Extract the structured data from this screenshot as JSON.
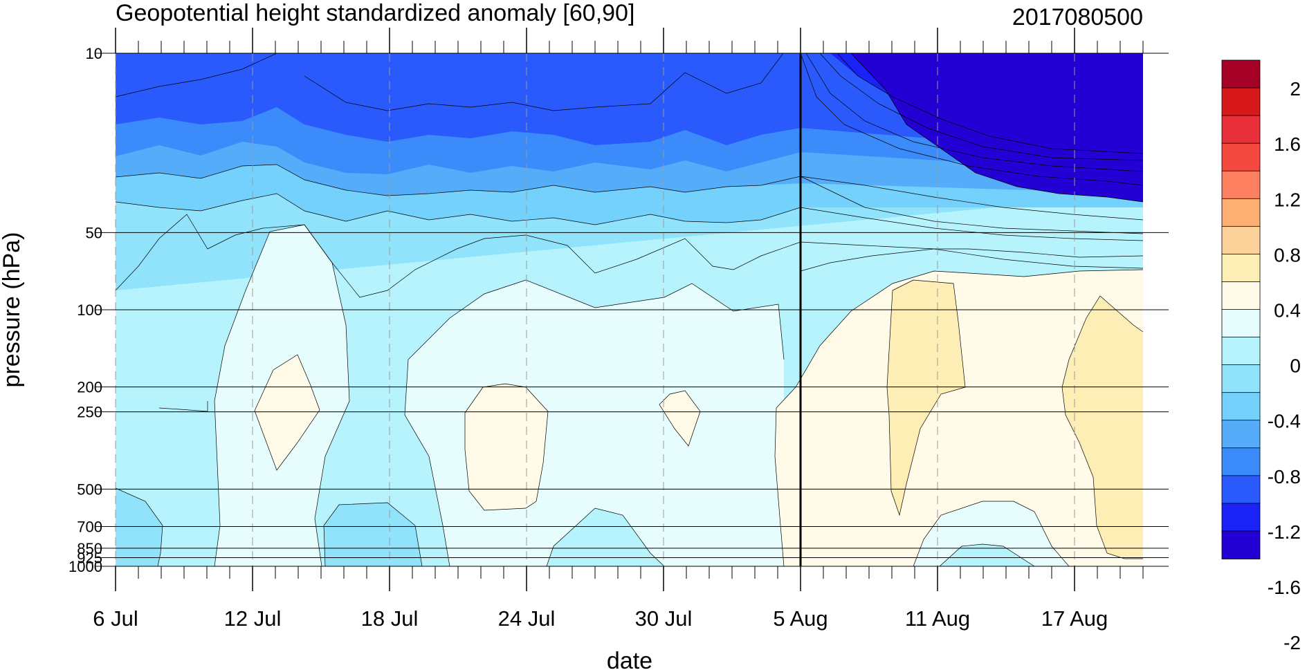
{
  "chart_data": {
    "type": "heatmap",
    "title": "Geopotential height standardized anomaly [60,90]",
    "subtitle": "2017080500",
    "xlabel": "date",
    "ylabel": "pressure (hPa)",
    "x_tick_labels": [
      "6 Jul",
      "12 Jul",
      "18 Jul",
      "24 Jul",
      "30 Jul",
      "5 Aug",
      "11 Aug",
      "17 Aug"
    ],
    "x_tick_dates": [
      "2017-07-06",
      "2017-07-12",
      "2017-07-18",
      "2017-07-24",
      "2017-07-30",
      "2017-08-05",
      "2017-08-11",
      "2017-08-17"
    ],
    "x_range": [
      "2017-07-06",
      "2017-08-20"
    ],
    "analysis_date": "2017-08-05",
    "y_scale": "log",
    "y_range": [
      1000,
      10
    ],
    "y_tick_labels": [
      "10",
      "50",
      "100",
      "200",
      "250",
      "500",
      "700",
      "850",
      "925",
      "1000"
    ],
    "y_tick_values": [
      10,
      50,
      100,
      200,
      250,
      500,
      700,
      850,
      925,
      1000
    ],
    "colorbar": {
      "labels": [
        "2",
        "1.6",
        "1.2",
        "0.8",
        "0.4",
        "0",
        "-0.4",
        "-0.8",
        "-1.2",
        "-1.6",
        "-2"
      ],
      "colors": [
        "#a50026",
        "#d7191c",
        "#e8303a",
        "#f4493e",
        "#fc8060",
        "#fdae73",
        "#fdd39b",
        "#fdeeb6",
        "#fffbe8",
        "#e6fcfd",
        "#b6f3fc",
        "#90e3fb",
        "#73d1fb",
        "#55adfa",
        "#3b8cfa",
        "#2a5afb",
        "#1b22f5",
        "#2300d4"
      ]
    },
    "contour_levels": [
      -2.2,
      -2.0,
      -1.8,
      -1.6,
      -1.4,
      -1.2,
      -1.0,
      -0.8,
      -0.6,
      -0.4,
      -0.2,
      0.0,
      0.2,
      0.4
    ],
    "series": [
      {
        "date": "2017-07-06",
        "values": [
          -1.7,
          -1.3,
          -0.95,
          -0.5,
          -0.4,
          -0.35,
          -0.2,
          -0.3
        ]
      },
      {
        "date": "2017-07-08",
        "values": [
          -1.65,
          -1.2,
          -0.9,
          -0.55,
          -0.35,
          -0.3,
          -0.25,
          -0.3
        ]
      },
      {
        "date": "2017-07-10",
        "values": [
          -1.7,
          -1.25,
          -0.95,
          -0.55,
          -0.3,
          -0.15,
          -0.1,
          -0.05
        ]
      },
      {
        "date": "2017-07-12",
        "values": [
          -1.7,
          -1.15,
          -0.7,
          -0.35,
          -0.1,
          0.0,
          -0.15,
          -0.25
        ]
      },
      {
        "date": "2017-07-13",
        "values": [
          -1.75,
          -1.1,
          -0.55,
          -0.25,
          0.05,
          0.12,
          -0.1,
          -0.3
        ]
      },
      {
        "date": "2017-07-14",
        "values": [
          -1.8,
          -1.05,
          -0.5,
          -0.2,
          0.1,
          0.2,
          -0.05,
          -0.3
        ]
      },
      {
        "date": "2017-07-15",
        "values": [
          -1.85,
          -1.15,
          -0.6,
          -0.25,
          0.05,
          0.1,
          -0.2,
          -0.35
        ]
      },
      {
        "date": "2017-07-18",
        "values": [
          -1.85,
          -1.35,
          -0.8,
          -0.5,
          -0.3,
          -0.25,
          -0.35,
          -0.4
        ]
      },
      {
        "date": "2017-07-20",
        "values": [
          -1.8,
          -1.25,
          -0.75,
          -0.45,
          -0.2,
          -0.15,
          -0.3,
          -0.35
        ]
      },
      {
        "date": "2017-07-22",
        "values": [
          -1.8,
          -1.25,
          -0.75,
          -0.35,
          -0.05,
          0.05,
          -0.1,
          -0.2
        ]
      },
      {
        "date": "2017-07-23",
        "values": [
          -1.8,
          -1.25,
          -0.75,
          -0.3,
          0.0,
          0.12,
          -0.05,
          -0.15
        ]
      },
      {
        "date": "2017-07-24",
        "values": [
          -1.8,
          -1.25,
          -0.75,
          -0.3,
          0.02,
          0.15,
          0.05,
          -0.1
        ]
      },
      {
        "date": "2017-07-27",
        "values": [
          -1.85,
          -1.3,
          -0.8,
          -0.4,
          -0.15,
          -0.1,
          -0.2,
          -0.3
        ]
      },
      {
        "date": "2017-07-30",
        "values": [
          -1.8,
          -1.25,
          -0.75,
          -0.35,
          -0.1,
          -0.05,
          -0.1,
          -0.15
        ]
      },
      {
        "date": "2017-07-31",
        "values": [
          -1.75,
          -1.25,
          -0.75,
          -0.3,
          -0.05,
          0.05,
          -0.05,
          -0.2
        ]
      },
      {
        "date": "2017-08-02",
        "values": [
          -1.8,
          -1.25,
          -0.75,
          -0.35,
          -0.15,
          -0.05,
          -0.05,
          -0.1
        ]
      },
      {
        "date": "2017-08-05",
        "values": [
          -1.6,
          -1.1,
          -0.6,
          -0.2,
          0.05,
          0.15,
          0.1,
          0.05
        ]
      },
      {
        "date": "2017-08-07",
        "values": [
          -2.0,
          -1.4,
          -0.7,
          -0.15,
          0.15,
          0.2,
          0.15,
          0.1
        ]
      },
      {
        "date": "2017-08-10",
        "values": [
          -2.3,
          -1.7,
          -0.9,
          -0.25,
          0.25,
          0.3,
          0.25,
          0.1
        ]
      },
      {
        "date": "2017-08-11",
        "values": [
          -2.3,
          -1.8,
          -1.0,
          -0.3,
          0.3,
          0.3,
          0.2,
          -0.1
        ]
      },
      {
        "date": "2017-08-14",
        "values": [
          -2.3,
          -2.0,
          -1.3,
          -0.4,
          0.15,
          0.15,
          0.1,
          -0.2
        ]
      },
      {
        "date": "2017-08-17",
        "values": [
          -2.3,
          -2.1,
          -1.5,
          -0.5,
          0.15,
          0.25,
          0.2,
          0.1
        ]
      },
      {
        "date": "2017-08-20",
        "values": [
          -2.3,
          -2.2,
          -1.6,
          -0.6,
          0.1,
          0.3,
          0.3,
          0.2
        ]
      }
    ],
    "series_levels_hpa": [
      10,
      20,
      30,
      50,
      100,
      250,
      500,
      1000
    ]
  }
}
